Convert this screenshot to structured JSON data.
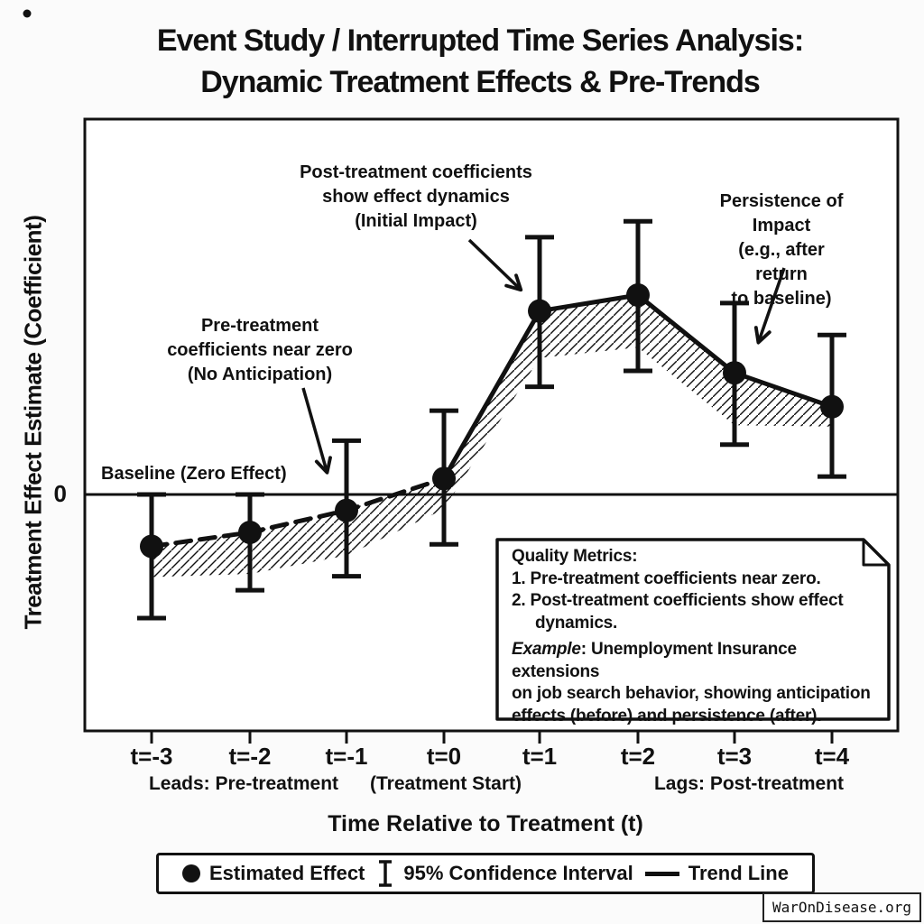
{
  "title_line1": "Event Study / Interrupted Time Series Analysis:",
  "title_line2": "Dynamic Treatment Effects & Pre-Trends",
  "axes": {
    "zero_tick": "0",
    "sublabel_leads": "Leads: Pre-treatment",
    "sublabel_start": "(Treatment Start)",
    "sublabel_lags": "Lags: Post-treatment"
  },
  "annotations": {
    "baseline": "Baseline (Zero Effect)",
    "pre": "Pre-treatment\ncoefficients near zero\n(No Anticipation)",
    "post": "Post-treatment coefficients\nshow effect dynamics\n(Initial Impact)",
    "persistence": "Persistence of Impact\n(e.g., after return\nto baseline)"
  },
  "quality_box": {
    "title": "Quality Metrics:",
    "item1": "1. Pre-treatment coefficients near zero.",
    "item2_line1": "2. Post-treatment coefficients show effect",
    "item2_line2": "dynamics.",
    "example_label": "Example",
    "example_line1_rest": ": Unemployment Insurance extensions",
    "example_line2": "on job search behavior, showing anticipation",
    "example_line3": "effects (before) and persistence (after)."
  },
  "legend": {
    "estimated_effect": "Estimated Effect",
    "confidence_interval": "95% Confidence Interval",
    "trend_line": "Trend Line"
  },
  "watermark": "WarOnDisease.org",
  "colors": {
    "ink": "#111111",
    "background": "#fbfbfb",
    "plot_fill": "#ffffff"
  },
  "chart_data": {
    "type": "line",
    "title": "Event Study / Interrupted Time Series Analysis: Dynamic Treatment Effects & Pre-Trends",
    "xlabel": "Time Relative to Treatment (t)",
    "ylabel": "Treatment Effect Estimate (Coefficient)",
    "categories": [
      "t=-3",
      "t=-2",
      "t=-1",
      "t=0",
      "t=1",
      "t=2",
      "t=3",
      "t=4"
    ],
    "x": [
      -3,
      -2,
      -1,
      0,
      1,
      2,
      3,
      4
    ],
    "series": [
      {
        "name": "Estimated Effect",
        "values": [
          -0.26,
          -0.19,
          -0.08,
          0.08,
          0.92,
          1.0,
          0.61,
          0.44
        ],
        "ci_low": [
          -0.62,
          -0.48,
          -0.41,
          -0.25,
          0.54,
          0.62,
          0.25,
          0.09
        ],
        "ci_high": [
          0.0,
          0.0,
          0.27,
          0.42,
          1.29,
          1.37,
          0.96,
          0.8
        ]
      }
    ],
    "treatment_start_index": 3,
    "pre_trend_style": "dashed",
    "post_trend_style": "solid",
    "yticks": [
      0
    ],
    "ylim": [
      -0.75,
      1.55
    ],
    "grid": false,
    "legend_position": "bottom"
  }
}
